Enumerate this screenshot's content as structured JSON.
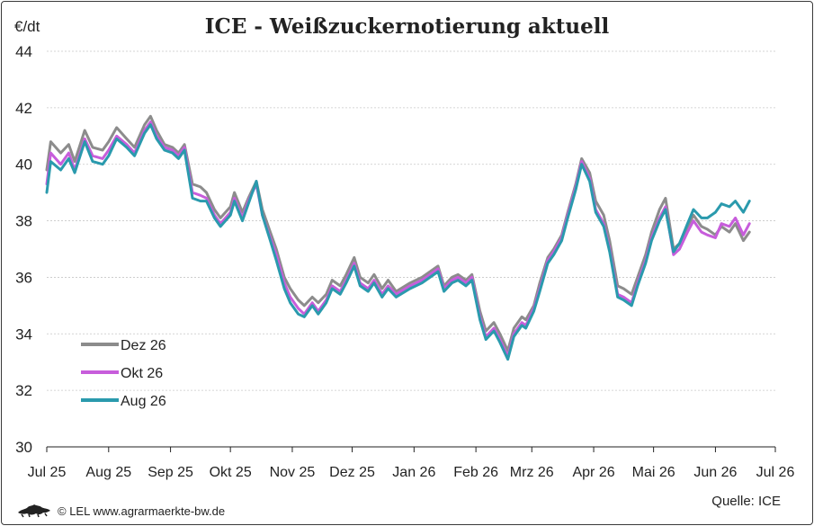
{
  "header": {
    "title": "ICE - Weißzuckernotierung aktuell",
    "unit": "€/dt"
  },
  "footer": {
    "copyright": "© LEL www.agrarmaerkte-bw.de",
    "source": "Quelle: ICE",
    "logo_icon": "lion-crest-icon"
  },
  "chart_data": {
    "type": "line",
    "ylim": [
      30,
      44
    ],
    "yticks": [
      30,
      32,
      34,
      36,
      38,
      40,
      42,
      44
    ],
    "xlim": [
      "2025-07-01",
      "2026-07-01"
    ],
    "xticks": [
      {
        "label": "Jul 25",
        "date": "2025-07-01"
      },
      {
        "label": "Aug 25",
        "date": "2025-08-01"
      },
      {
        "label": "Sep 25",
        "date": "2025-09-01"
      },
      {
        "label": "Okt 25",
        "date": "2025-10-01"
      },
      {
        "label": "Nov 25",
        "date": "2025-11-01"
      },
      {
        "label": "Dez 25",
        "date": "2025-12-01"
      },
      {
        "label": "Jan 26",
        "date": "2026-01-01"
      },
      {
        "label": "Feb 26",
        "date": "2026-02-01"
      },
      {
        "label": "Mrz 26",
        "date": "2026-03-01"
      },
      {
        "label": "Apr 26",
        "date": "2026-04-01"
      },
      {
        "label": "Mai 26",
        "date": "2026-05-01"
      },
      {
        "label": "Jun 26",
        "date": "2026-06-01"
      },
      {
        "label": "Jul 26",
        "date": "2026-07-01"
      }
    ],
    "grid": "horizontal",
    "legend_position": "lower-left",
    "x": [
      "2025-07-01",
      "2025-07-03",
      "2025-07-08",
      "2025-07-12",
      "2025-07-15",
      "2025-07-20",
      "2025-07-24",
      "2025-07-29",
      "2025-08-01",
      "2025-08-05",
      "2025-08-10",
      "2025-08-14",
      "2025-08-19",
      "2025-08-22",
      "2025-08-25",
      "2025-08-29",
      "2025-09-02",
      "2025-09-05",
      "2025-09-08",
      "2025-09-12",
      "2025-09-16",
      "2025-09-19",
      "2025-09-23",
      "2025-09-26",
      "2025-10-01",
      "2025-10-03",
      "2025-10-07",
      "2025-10-10",
      "2025-10-14",
      "2025-10-17",
      "2025-10-21",
      "2025-10-24",
      "2025-10-28",
      "2025-10-31",
      "2025-11-04",
      "2025-11-07",
      "2025-11-11",
      "2025-11-14",
      "2025-11-18",
      "2025-11-21",
      "2025-11-25",
      "2025-11-28",
      "2025-12-02",
      "2025-12-05",
      "2025-12-09",
      "2025-12-12",
      "2025-12-16",
      "2025-12-19",
      "2025-12-23",
      "2025-12-30",
      "2026-01-05",
      "2026-01-09",
      "2026-01-13",
      "2026-01-16",
      "2026-01-20",
      "2026-01-23",
      "2026-01-27",
      "2026-01-30",
      "2026-02-03",
      "2026-02-06",
      "2026-02-10",
      "2026-02-13",
      "2026-02-17",
      "2026-02-20",
      "2026-02-24",
      "2026-02-26",
      "2026-03-02",
      "2026-03-05",
      "2026-03-09",
      "2026-03-12",
      "2026-03-16",
      "2026-03-19",
      "2026-03-23",
      "2026-03-26",
      "2026-03-30",
      "2026-04-02",
      "2026-04-06",
      "2026-04-09",
      "2026-04-13",
      "2026-04-16",
      "2026-04-20",
      "2026-04-23",
      "2026-04-27",
      "2026-04-30",
      "2026-05-04",
      "2026-05-07",
      "2026-05-11",
      "2026-05-14",
      "2026-05-18",
      "2026-05-21",
      "2026-05-25",
      "2026-05-28",
      "2026-06-01",
      "2026-06-04",
      "2026-06-08",
      "2026-06-11",
      "2026-06-15",
      "2026-06-18"
    ],
    "series": [
      {
        "name": "Dez 26",
        "color": "#8c8c8c",
        "values": [
          39.8,
          40.8,
          40.4,
          40.7,
          40.1,
          41.2,
          40.6,
          40.5,
          40.8,
          41.3,
          40.9,
          40.6,
          41.4,
          41.7,
          41.2,
          40.7,
          40.6,
          40.4,
          40.7,
          39.3,
          39.2,
          39.0,
          38.4,
          38.1,
          38.5,
          39.0,
          38.3,
          38.8,
          39.4,
          38.4,
          37.6,
          37.0,
          36.0,
          35.6,
          35.2,
          35.0,
          35.3,
          35.1,
          35.4,
          35.9,
          35.7,
          36.1,
          36.7,
          36.0,
          35.8,
          36.1,
          35.6,
          35.9,
          35.5,
          35.8,
          36.0,
          36.2,
          36.4,
          35.7,
          36.0,
          36.1,
          35.9,
          36.1,
          34.8,
          34.1,
          34.4,
          34.0,
          33.4,
          34.2,
          34.6,
          34.5,
          35.0,
          35.8,
          36.7,
          37.0,
          37.5,
          38.3,
          39.3,
          40.2,
          39.7,
          38.7,
          38.2,
          37.3,
          35.7,
          35.6,
          35.4,
          36.0,
          36.8,
          37.6,
          38.4,
          38.8,
          37.0,
          37.2,
          37.8,
          38.2,
          37.8,
          37.7,
          37.5,
          37.8,
          37.6,
          37.9,
          37.3,
          37.6
        ]
      },
      {
        "name": "Okt 26",
        "color": "#c75ddb",
        "values": [
          39.3,
          40.4,
          40.0,
          40.4,
          39.8,
          40.9,
          40.3,
          40.2,
          40.5,
          41.0,
          40.7,
          40.4,
          41.2,
          41.5,
          41.0,
          40.6,
          40.5,
          40.3,
          40.6,
          39.0,
          38.9,
          38.8,
          38.2,
          37.9,
          38.3,
          38.8,
          38.1,
          38.7,
          39.3,
          38.2,
          37.4,
          36.8,
          35.8,
          35.3,
          34.9,
          34.7,
          35.1,
          34.8,
          35.2,
          35.7,
          35.5,
          35.9,
          36.5,
          35.8,
          35.6,
          35.9,
          35.4,
          35.7,
          35.4,
          35.7,
          35.9,
          36.1,
          36.3,
          35.6,
          35.9,
          36.0,
          35.8,
          36.0,
          34.6,
          33.9,
          34.2,
          33.8,
          33.2,
          34.0,
          34.4,
          34.3,
          34.9,
          35.6,
          36.6,
          36.9,
          37.4,
          38.2,
          39.2,
          40.1,
          39.5,
          38.4,
          37.9,
          37.0,
          35.4,
          35.3,
          35.1,
          35.8,
          36.6,
          37.4,
          38.1,
          38.5,
          36.8,
          37.0,
          37.6,
          38.0,
          37.6,
          37.5,
          37.4,
          37.9,
          37.8,
          38.1,
          37.5,
          37.9
        ]
      },
      {
        "name": "Aug 26",
        "color": "#2a9aad",
        "values": [
          39.0,
          40.1,
          39.8,
          40.2,
          39.7,
          40.8,
          40.1,
          40.0,
          40.3,
          40.9,
          40.6,
          40.3,
          41.1,
          41.4,
          40.9,
          40.5,
          40.4,
          40.2,
          40.5,
          38.8,
          38.7,
          38.7,
          38.1,
          37.8,
          38.2,
          38.7,
          38.0,
          38.6,
          39.4,
          38.2,
          37.3,
          36.6,
          35.6,
          35.1,
          34.7,
          34.6,
          35.0,
          34.7,
          35.1,
          35.6,
          35.4,
          35.8,
          36.4,
          35.7,
          35.5,
          35.8,
          35.3,
          35.6,
          35.3,
          35.6,
          35.8,
          36.0,
          36.2,
          35.5,
          35.8,
          35.9,
          35.7,
          35.9,
          34.5,
          33.8,
          34.1,
          33.7,
          33.1,
          33.9,
          34.3,
          34.2,
          34.8,
          35.5,
          36.5,
          36.8,
          37.3,
          38.1,
          39.1,
          40.0,
          39.4,
          38.3,
          37.8,
          36.9,
          35.3,
          35.2,
          35.0,
          35.7,
          36.5,
          37.3,
          38.0,
          38.4,
          36.9,
          37.2,
          37.9,
          38.4,
          38.1,
          38.1,
          38.3,
          38.6,
          38.5,
          38.7,
          38.3,
          38.7
        ]
      }
    ]
  }
}
